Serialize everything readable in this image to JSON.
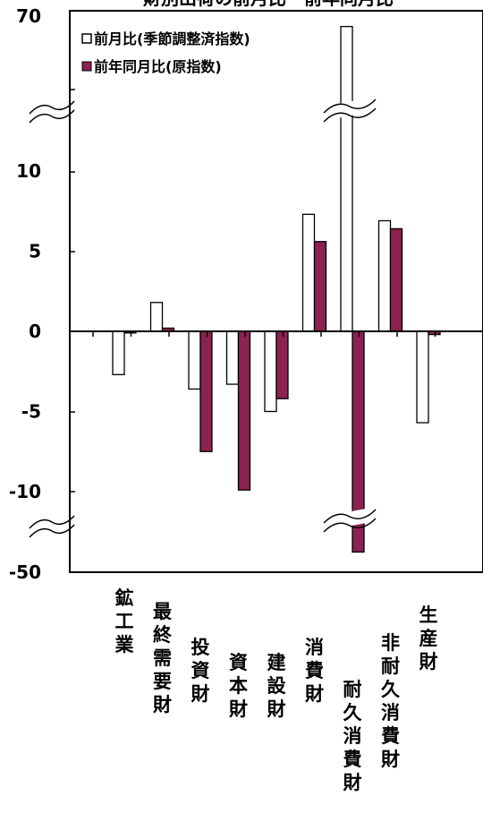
{
  "chart_data": {
    "type": "bar",
    "title": "財別出荷の前月比・前年同月比",
    "categories": [
      "鉱工業",
      "最終需要財",
      "投資財",
      "資本財",
      "建設財",
      "消費財",
      "耐久消費財",
      "非耐久消費財",
      "生産財"
    ],
    "series": [
      {
        "name": "前月比(季節調整済指数)",
        "color": "#ffffff",
        "values": [
          -2.7,
          1.8,
          -3.6,
          -3.3,
          -5.0,
          7.3,
          66.0,
          6.9,
          -5.7
        ]
      },
      {
        "name": "前年同月比(原指数)",
        "color": "#8b2252",
        "values": [
          -0.1,
          0.2,
          -7.5,
          -9.9,
          -4.2,
          5.6,
          -40.0,
          6.4,
          -0.2
        ]
      }
    ],
    "y_ticks": [
      "70",
      "10",
      "5",
      "0",
      "-5",
      "-10",
      "-50"
    ],
    "y_axis_break": "broken axis: 10→70 above, -10→-50 below",
    "legend_position": "top-left",
    "grid": false
  }
}
